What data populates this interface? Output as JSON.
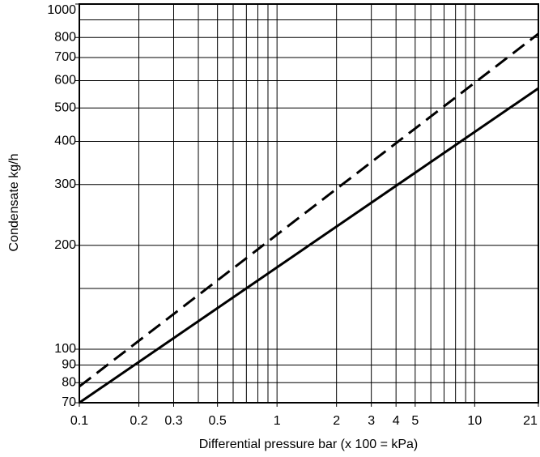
{
  "chart_data": {
    "type": "line",
    "xlabel": "Differential pressure bar (x 100 = kPa)",
    "ylabel": "Condensate kg/h",
    "xscale": "log",
    "yscale": "log",
    "grid": true,
    "xlim": [
      0.1,
      21
    ],
    "ylim": [
      70,
      1000
    ],
    "xticks": [
      0.1,
      0.2,
      0.3,
      0.5,
      1,
      2,
      3,
      4,
      5,
      10,
      21
    ],
    "xminor": [
      0.4,
      0.6,
      0.7,
      0.8,
      0.9,
      6,
      7,
      8,
      9
    ],
    "yticks": [
      70,
      80,
      90,
      100,
      200,
      300,
      400,
      500,
      600,
      700,
      800,
      1000
    ],
    "yminor": [
      150,
      900
    ],
    "series": [
      {
        "color": "#000000",
        "dash": "solid",
        "x": [
          0.1,
          21
        ],
        "values": [
          70,
          570
        ]
      },
      {
        "color": "#000000",
        "dash": "dashed",
        "x": [
          0.1,
          21
        ],
        "values": [
          78,
          820
        ]
      }
    ]
  }
}
